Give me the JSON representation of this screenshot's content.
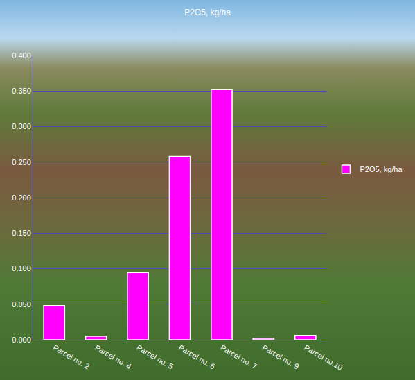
{
  "chart_data": {
    "type": "bar",
    "title": "P2O5, kg/ha",
    "categories": [
      "Parcel no. 2",
      "Parcel no. 4",
      "Parcel no. 5",
      "Parcel no. 6",
      "Parcel no. 7",
      "Parcel no. 9",
      "Parcel no.10"
    ],
    "series": [
      {
        "name": "P2O5, kg/ha",
        "color": "#ff00ff",
        "values": [
          0.048,
          0.005,
          0.095,
          0.258,
          0.352,
          0.002,
          0.006
        ]
      }
    ],
    "ylim": [
      0,
      0.4
    ],
    "yticks": [
      {
        "value": 0,
        "label": "0.000"
      },
      {
        "value": 0.05,
        "label": "0.050"
      },
      {
        "value": 0.1,
        "label": "0.100"
      },
      {
        "value": 0.15,
        "label": "0.150"
      },
      {
        "value": 0.2,
        "label": "0.200"
      },
      {
        "value": 0.25,
        "label": "0.250"
      },
      {
        "value": 0.3,
        "label": "0.300"
      },
      {
        "value": 0.35,
        "label": "0.350"
      },
      {
        "value": 0.4,
        "label": "0.400"
      }
    ],
    "grid": true,
    "legend": "right"
  }
}
